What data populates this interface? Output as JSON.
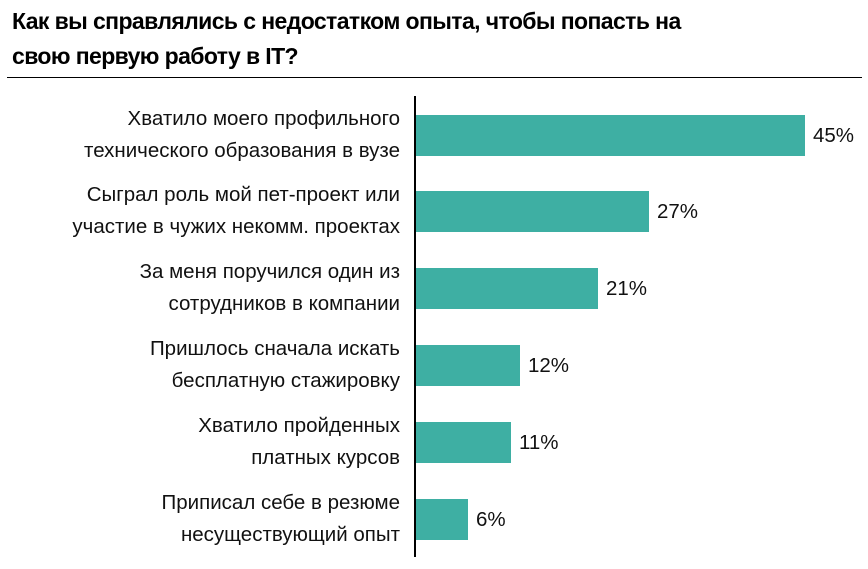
{
  "title": "Как вы справлялись с недостатком опыта, чтобы попасть на свою первую работу в IT?",
  "title_lines": [
    "Как вы справлялись с недостатком опыта, чтобы попасть на",
    "свою первую работу в IT?"
  ],
  "colors": {
    "bar": "#3EAFA3",
    "axis": "#000000",
    "text": "#111111"
  },
  "chart_data": {
    "type": "bar",
    "orientation": "horizontal",
    "title": "Как вы справлялись с недостатком опыта, чтобы попасть на свою первую работу в IT?",
    "xlabel": "",
    "ylabel": "",
    "categories": [
      "Хватило моего профильного технического образования в вузе",
      "Сыграл роль мой пет-проект или участие в чужих некомм. проектах",
      "За меня поручился один из сотрудников в компании",
      "Пришлось сначала искать бесплатную стажировку",
      "Хватило пройденных платных курсов",
      "Приписал себе в резюме несуществующий опыт"
    ],
    "values": [
      45,
      27,
      21,
      12,
      11,
      6
    ],
    "value_labels": [
      "45%",
      "27%",
      "21%",
      "12%",
      "11%",
      "6%"
    ],
    "unit": "%",
    "grid": false,
    "legend": null
  },
  "bars": [
    {
      "line1": "Хватило моего профильного",
      "line2": "технического образования в вузе",
      "value": 45,
      "label": "45%"
    },
    {
      "line1": "Сыграл роль мой пет-проект или",
      "line2": "участие в чужих некомм. проектах",
      "value": 27,
      "label": "27%"
    },
    {
      "line1": "За меня поручился один из",
      "line2": "сотрудников в компании",
      "value": 21,
      "label": "21%"
    },
    {
      "line1": "Пришлось сначала искать",
      "line2": "бесплатную стажировку",
      "value": 12,
      "label": "12%"
    },
    {
      "line1": "Хватило пройденных",
      "line2": "платных курсов",
      "value": 11,
      "label": "11%"
    },
    {
      "line1": "Приписал себе в резюме",
      "line2": "несуществующий опыт",
      "value": 6,
      "label": "6%"
    }
  ]
}
